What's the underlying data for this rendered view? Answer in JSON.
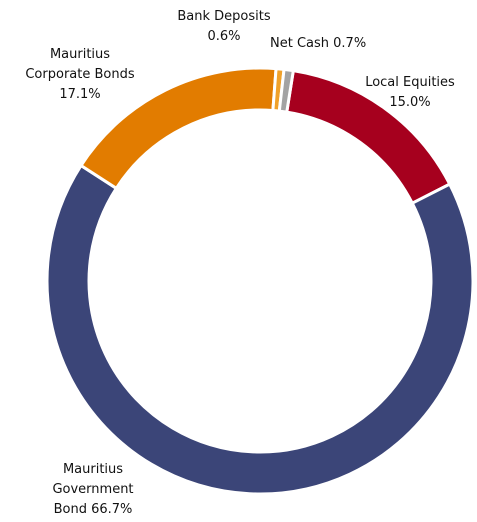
{
  "chart_data": {
    "type": "donut",
    "categories": [
      "Local Equities",
      "Mauritius Government Bond",
      "Mauritius Corporate Bonds",
      "Bank Deposits",
      "Net Cash"
    ],
    "values": [
      15.0,
      66.7,
      17.1,
      0.6,
      0.7
    ],
    "value_labels": [
      "15.0%",
      "66.7%",
      "17.1%",
      "0.6%",
      "0.7%"
    ],
    "colors": [
      "#a6001e",
      "#3b4578",
      "#e27c00",
      "#f0a12a",
      "#a3a3a3"
    ]
  }
}
